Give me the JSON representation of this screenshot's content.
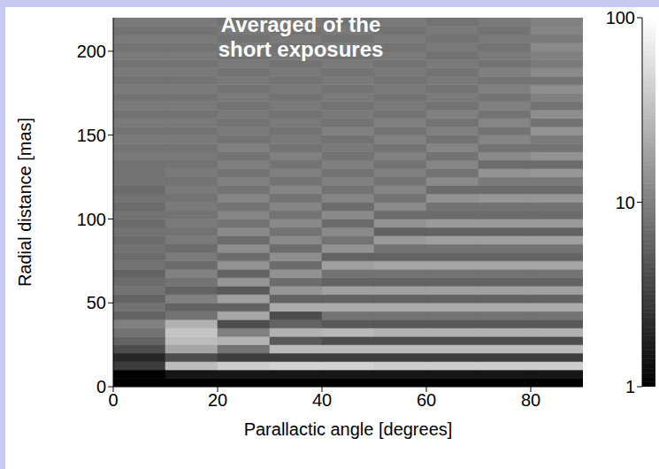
{
  "chart_data": {
    "type": "heatmap",
    "title": "Averaged of the short exposures",
    "x_label": "Parallactic angle [degrees]",
    "y_label": "Radial distance [mas]",
    "xlim": [
      0,
      90
    ],
    "ylim": [
      0,
      220
    ],
    "xticks": [
      0,
      20,
      40,
      60,
      80
    ],
    "yticks": [
      0,
      50,
      100,
      150,
      200
    ],
    "x_bins": [
      0,
      10,
      20,
      30,
      40,
      50,
      60,
      70,
      80,
      90
    ],
    "y_bins": [
      0,
      5,
      10,
      15,
      20,
      25,
      30,
      35,
      40,
      45,
      50,
      55,
      60,
      65,
      70,
      75,
      80,
      85,
      90,
      95,
      100,
      105,
      110,
      115,
      120,
      125,
      130,
      135,
      140,
      145,
      150,
      155,
      160,
      165,
      170,
      175,
      180,
      185,
      190,
      195,
      200,
      205,
      210,
      215,
      220
    ],
    "values": [
      [
        1,
        1,
        1,
        1,
        1,
        1,
        1,
        1,
        1
      ],
      [
        1,
        1.5,
        1.5,
        1.5,
        1.5,
        1.5,
        1.5,
        1.5,
        1.5
      ],
      [
        3,
        30,
        40,
        45,
        45,
        40,
        40,
        40,
        40
      ],
      [
        2,
        4,
        3,
        3,
        3,
        3,
        3,
        3,
        3
      ],
      [
        4,
        20,
        8,
        30,
        30,
        30,
        30,
        30,
        30
      ],
      [
        6,
        30,
        25,
        5,
        4,
        4,
        4,
        4,
        4
      ],
      [
        8,
        35,
        10,
        25,
        28,
        25,
        25,
        25,
        25
      ],
      [
        10,
        25,
        4,
        6,
        5,
        5,
        5,
        5,
        5
      ],
      [
        6,
        8,
        20,
        4,
        8,
        8,
        8,
        8,
        8
      ],
      [
        8,
        6,
        6,
        22,
        22,
        22,
        22,
        22,
        22
      ],
      [
        6,
        10,
        18,
        6,
        6,
        6,
        6,
        6,
        6
      ],
      [
        8,
        6,
        5,
        15,
        18,
        18,
        18,
        18,
        18
      ],
      [
        7,
        8,
        15,
        7,
        6,
        6,
        6,
        6,
        6
      ],
      [
        6,
        10,
        6,
        14,
        8,
        8,
        8,
        8,
        8
      ],
      [
        8,
        7,
        14,
        7,
        18,
        20,
        20,
        20,
        20
      ],
      [
        7,
        9,
        7,
        13,
        6,
        6,
        6,
        6,
        6
      ],
      [
        8,
        7,
        13,
        7,
        14,
        8,
        8,
        8,
        8
      ],
      [
        7,
        9,
        7,
        12,
        8,
        16,
        18,
        18,
        18
      ],
      [
        8,
        8,
        12,
        8,
        12,
        6,
        6,
        6,
        6
      ],
      [
        7,
        9,
        8,
        12,
        7,
        14,
        16,
        16,
        16
      ],
      [
        8,
        8,
        11,
        8,
        12,
        7,
        7,
        7,
        7
      ],
      [
        7,
        9,
        8,
        11,
        7,
        12,
        8,
        8,
        8
      ],
      [
        8,
        8,
        11,
        8,
        11,
        8,
        14,
        15,
        15
      ],
      [
        7,
        9,
        8,
        11,
        8,
        11,
        7,
        7,
        7
      ],
      [
        8,
        8,
        10,
        8,
        10,
        8,
        12,
        9,
        9
      ],
      [
        8,
        9,
        8,
        10,
        8,
        10,
        8,
        14,
        15
      ],
      [
        8,
        8,
        10,
        8,
        10,
        8,
        11,
        7,
        7
      ],
      [
        9,
        9,
        8,
        10,
        8,
        10,
        8,
        12,
        14
      ],
      [
        8,
        8,
        10,
        8,
        9,
        8,
        11,
        8,
        8
      ],
      [
        9,
        9,
        8,
        9,
        8,
        10,
        8,
        11,
        9
      ],
      [
        8,
        8,
        9,
        8,
        10,
        8,
        10,
        8,
        14
      ],
      [
        9,
        9,
        8,
        9,
        8,
        10,
        8,
        11,
        8
      ],
      [
        8,
        8,
        9,
        8,
        9,
        8,
        10,
        8,
        13
      ],
      [
        9,
        9,
        8,
        9,
        8,
        9,
        8,
        10,
        8
      ],
      [
        8,
        8,
        9,
        8,
        9,
        8,
        9,
        8,
        10
      ],
      [
        9,
        9,
        8,
        9,
        8,
        9,
        8,
        10,
        13
      ],
      [
        8,
        8,
        9,
        8,
        9,
        8,
        9,
        8,
        8
      ],
      [
        9,
        9,
        8,
        9,
        8,
        9,
        8,
        10,
        12
      ],
      [
        8,
        8,
        9,
        8,
        9,
        8,
        9,
        8,
        9
      ],
      [
        9,
        9,
        8,
        9,
        8,
        9,
        8,
        9,
        10
      ],
      [
        8,
        8,
        9,
        8,
        9,
        8,
        9,
        8,
        12
      ],
      [
        9,
        9,
        8,
        9,
        8,
        9,
        8,
        9,
        9
      ],
      [
        8,
        8,
        9,
        8,
        9,
        8,
        9,
        8,
        11
      ],
      [
        9,
        9,
        8,
        9,
        8,
        9,
        8,
        9,
        10
      ]
    ],
    "colorbar": {
      "range": [
        1,
        100
      ],
      "ticks": [
        1,
        10,
        100
      ],
      "log": true
    }
  }
}
